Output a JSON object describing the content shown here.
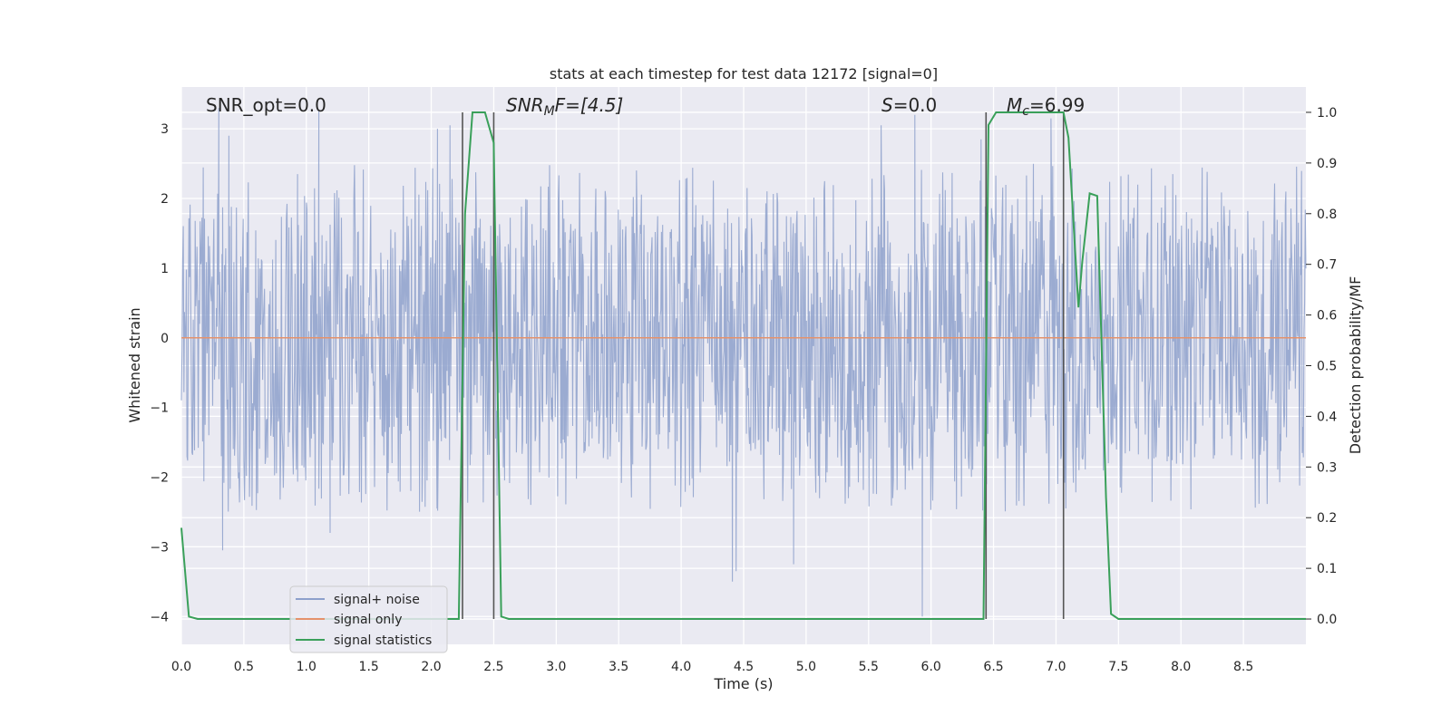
{
  "chart_data": {
    "type": "line",
    "title": "stats at each timestep for test data 12172 [signal=0]",
    "xlabel": "Time (s)",
    "ylabel": "Whitened strain",
    "y2label": "Detection probability/MF",
    "xlim": [
      0.0,
      9.0
    ],
    "ylim": [
      -4.4,
      3.6
    ],
    "y2lim": [
      -0.05,
      1.05
    ],
    "xticks": [
      "0.0",
      "0.5",
      "1.0",
      "1.5",
      "2.0",
      "2.5",
      "3.0",
      "3.5",
      "4.0",
      "4.5",
      "5.0",
      "5.5",
      "6.0",
      "6.5",
      "7.0",
      "7.5",
      "8.0",
      "8.5"
    ],
    "xtick_values": [
      0.0,
      0.5,
      1.0,
      1.5,
      2.0,
      2.5,
      3.0,
      3.5,
      4.0,
      4.5,
      5.0,
      5.5,
      6.0,
      6.5,
      7.0,
      7.5,
      8.0,
      8.5
    ],
    "yticks": [
      "3",
      "2",
      "1",
      "0",
      "−1",
      "−2",
      "−3",
      "−4"
    ],
    "ytick_values": [
      3,
      2,
      1,
      0,
      -1,
      -2,
      -3,
      -4
    ],
    "y2ticks": [
      "1.0",
      "0.9",
      "0.8",
      "0.7",
      "0.6",
      "0.5",
      "0.4",
      "0.3",
      "0.2",
      "0.1",
      "0.0"
    ],
    "y2tick_values": [
      1.0,
      0.9,
      0.8,
      0.7,
      0.6,
      0.5,
      0.4,
      0.3,
      0.2,
      0.1,
      0.0
    ],
    "grid": true,
    "legend_position": "lower-left",
    "annotations": {
      "snr_opt": "SNR_opt=0.0",
      "snr_mf_sym": "SNR",
      "snr_mf_sub": "M",
      "snr_mf_rest": "F=[4.5]",
      "s_sym": "S",
      "s_rest": "=0.0",
      "mc_sym": "M",
      "mc_sub": "c",
      "mc_rest": "=6.99"
    },
    "event_lines": [
      2.25,
      2.5,
      6.44,
      7.06
    ],
    "series": [
      {
        "name": "signal+ noise",
        "color": "#8da0cb",
        "sampling": "dense noise, amplitude ~±1.8, spikes to ~±3.2",
        "spikes": [
          [
            0.3,
            3.3
          ],
          [
            0.33,
            -3.05
          ],
          [
            0.38,
            2.9
          ],
          [
            1.1,
            3.25
          ],
          [
            0.93,
            2.35
          ],
          [
            1.19,
            -2.8
          ],
          [
            4.41,
            -3.5
          ],
          [
            4.44,
            -3.35
          ],
          [
            4.9,
            -3.25
          ],
          [
            5.93,
            -4.0
          ],
          [
            5.6,
            3.05
          ],
          [
            5.87,
            3.2
          ],
          [
            6.4,
            2.85
          ],
          [
            6.96,
            3.15
          ],
          [
            2.05,
            3.0
          ],
          [
            2.15,
            3.05
          ]
        ]
      },
      {
        "name": "signal only",
        "color": "#e5926b",
        "x": [
          0.0,
          9.0
        ],
        "values": [
          0.0,
          0.0
        ]
      },
      {
        "name": "signal statistics",
        "color": "#3aa05a",
        "x": [
          0.0,
          0.06,
          0.13,
          2.22,
          2.27,
          2.33,
          2.43,
          2.5,
          2.56,
          2.62,
          6.42,
          6.46,
          6.52,
          6.6,
          7.06,
          7.1,
          7.18,
          7.21,
          7.27,
          7.33,
          7.4,
          7.44,
          7.5,
          7.6,
          9.0
        ],
        "values": [
          0.18,
          0.005,
          0.0,
          0.0,
          0.8,
          1.0,
          1.0,
          0.94,
          0.005,
          0.0,
          0.0,
          0.975,
          1.0,
          1.0,
          1.0,
          0.95,
          0.615,
          0.705,
          0.84,
          0.835,
          0.24,
          0.01,
          0.0,
          0.0,
          0.0
        ]
      }
    ]
  }
}
